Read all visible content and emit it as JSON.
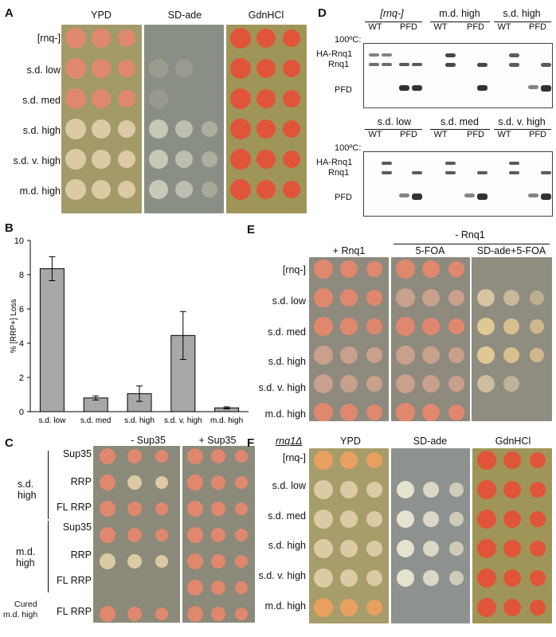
{
  "panels": {
    "A": {
      "letter": "A",
      "columns": [
        "YPD",
        "SD-ade",
        "GdnHCl"
      ],
      "rows": [
        "[rnq-]",
        "s.d. low",
        "s.d. med",
        "s.d. high",
        "s.d. v. high",
        "m.d. high"
      ]
    },
    "B": {
      "letter": "B",
      "ylabel": "% [RRP+] Loss",
      "chart_data": {
        "type": "bar",
        "categories": [
          "s.d. low",
          "s.d. med",
          "s.d. high",
          "s.d. v. high",
          "m.d. high"
        ],
        "values": [
          8.35,
          0.8,
          1.05,
          4.45,
          0.22
        ],
        "errors": [
          0.7,
          0.12,
          0.45,
          1.4,
          0.06
        ],
        "ylim": [
          0,
          10
        ],
        "yticks": [
          "0",
          "2",
          "4",
          "6",
          "8",
          "10"
        ],
        "ylabel": "% [RRP+] Loss"
      }
    },
    "C": {
      "letter": "C",
      "columns": [
        "- Sup35",
        "+ Sup35"
      ],
      "group1": "s.d. high",
      "group2": "m.d. high",
      "group3": "Cured m.d. high",
      "rows": [
        "Sup35",
        "RRP",
        "FL RRP",
        "Sup35",
        "RRP",
        "FL RRP",
        "FL RRP"
      ]
    },
    "D": {
      "letter": "D",
      "top_groups": [
        "[rnq-]",
        "m.d. high",
        "s.d. high"
      ],
      "bottom_groups": [
        "s.d. low",
        "s.d. med",
        "s.d. v. high"
      ],
      "sub": [
        "WT",
        "PFD"
      ],
      "temp_label": "100ºC:",
      "signs": [
        "-",
        "+"
      ],
      "bands": [
        "HA-Rnq1",
        "Rnq1",
        "PFD"
      ]
    },
    "E": {
      "letter": "E",
      "top_header": "- Rnq1",
      "columns": [
        "+ Rnq1",
        "5-FOA",
        "SD-ade+5-FOA"
      ],
      "rows": [
        "[rnq-]",
        "s.d. low",
        "s.d. med",
        "s.d. high",
        "s.d. v. high",
        "m.d. high"
      ]
    },
    "F": {
      "letter": "F",
      "strain": "rnq1Δ",
      "columns": [
        "YPD",
        "SD-ade",
        "GdnHCl"
      ],
      "rows": [
        "[rnq-]",
        "s.d. low",
        "s.d. med",
        "s.d. high",
        "s.d. v. high",
        "m.d. high"
      ]
    }
  }
}
